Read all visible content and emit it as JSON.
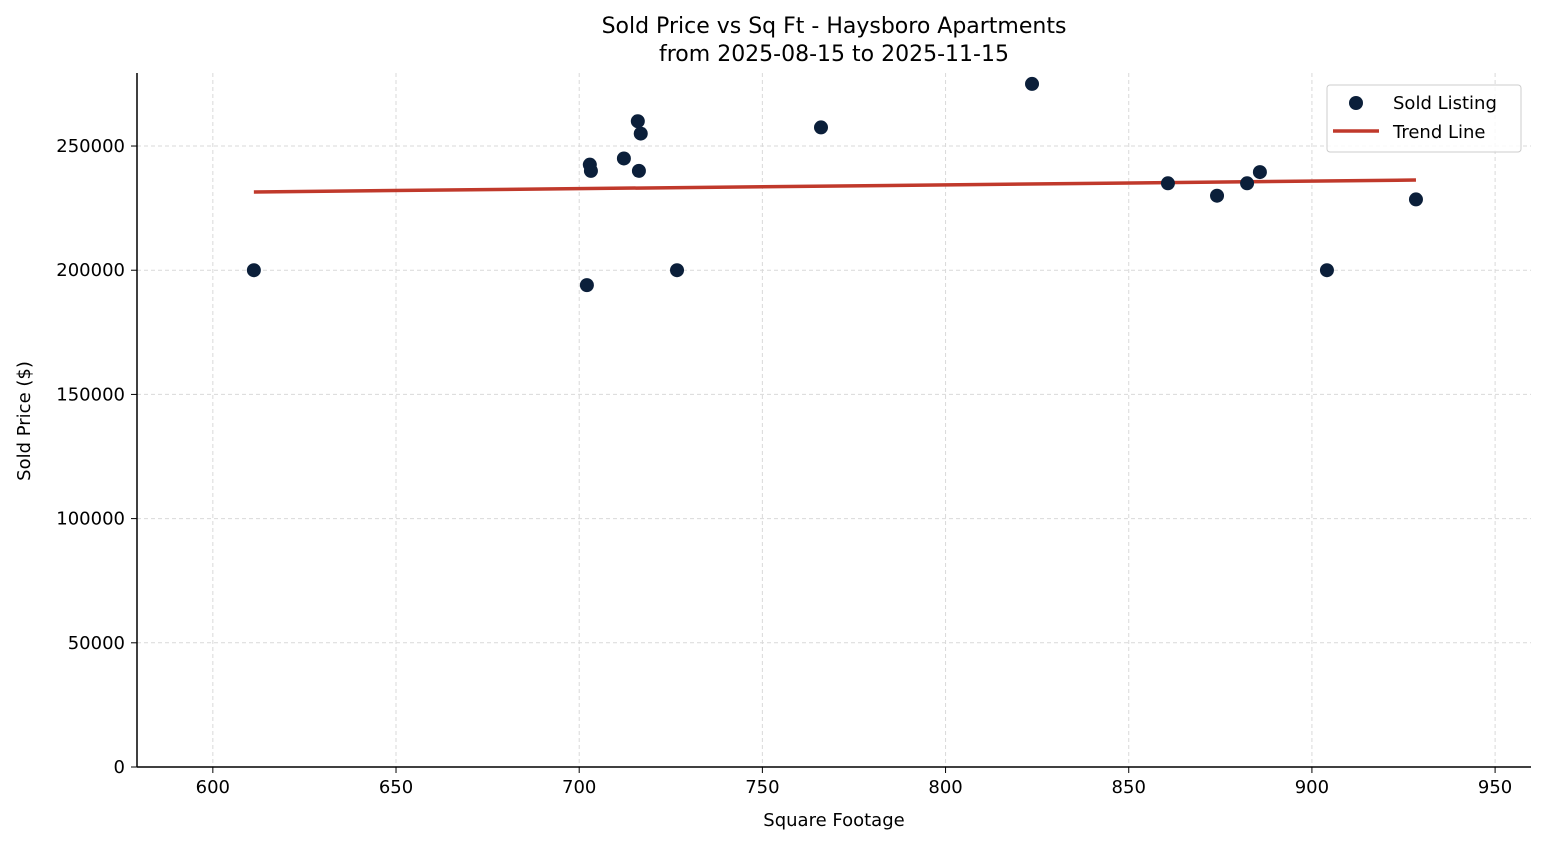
{
  "chart_data": {
    "type": "scatter",
    "title": "Sold Price vs Sq Ft - Haysboro Apartments",
    "subtitle": "from 2025-08-15 to 2025-11-15",
    "xlabel": "Square Footage",
    "ylabel": "Sold Price ($)",
    "xlim": [
      579.3,
      959.8
    ],
    "ylim": [
      0,
      279400
    ],
    "xticks": [
      600,
      650,
      700,
      750,
      800,
      850,
      900,
      950
    ],
    "yticks": [
      0,
      50000,
      100000,
      150000,
      200000,
      250000
    ],
    "grid": true,
    "legend_position": "top-right",
    "series": [
      {
        "name": "Sold Listing",
        "type": "scatter",
        "color": "#0b1f3a",
        "points": [
          [
            611.2,
            200000
          ],
          [
            702.1,
            194000
          ],
          [
            702.9,
            242500
          ],
          [
            703.2,
            240000
          ],
          [
            712.2,
            245000
          ],
          [
            716.0,
            260000
          ],
          [
            716.8,
            255000
          ],
          [
            716.3,
            240000
          ],
          [
            726.7,
            200000
          ],
          [
            766.0,
            257500
          ],
          [
            823.6,
            275000
          ],
          [
            860.7,
            235000
          ],
          [
            874.1,
            230000
          ],
          [
            882.3,
            235000
          ],
          [
            885.8,
            239500
          ],
          [
            904.1,
            200000
          ],
          [
            928.4,
            228500
          ]
        ]
      },
      {
        "name": "Trend Line",
        "type": "line",
        "color": "#c0392b",
        "points": [
          [
            611.2,
            231500
          ],
          [
            928.4,
            236300
          ]
        ]
      }
    ]
  }
}
